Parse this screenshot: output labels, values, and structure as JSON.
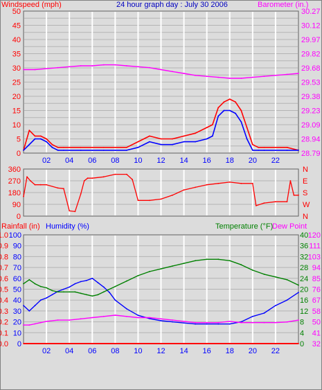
{
  "chart_data": [
    {
      "type": "line",
      "title": "24 hour graph day : July 30 2006",
      "x_ticks": [
        "02",
        "04",
        "06",
        "08",
        "10",
        "12",
        "14",
        "16",
        "18",
        "20",
        "22"
      ],
      "y_left": {
        "label": "Windspeed (mph)",
        "color": "#ff0000",
        "ticks": [
          "0",
          "2.5",
          "5",
          "7.5",
          "10",
          "12.5",
          "15",
          "17.5",
          "20",
          "22.5",
          "25",
          "27.5",
          "30",
          "32.5",
          "35",
          "37.5",
          "40",
          "42.5",
          "45",
          "47.5",
          "50"
        ],
        "ylim": [
          0,
          50
        ]
      },
      "y_right": {
        "label": "Barometer (in.)",
        "color": "#ff00ff",
        "ticks": [
          "28.79",
          "28.94",
          "29.09",
          "29.23",
          "29.38",
          "29.53",
          "29.68",
          "29.82",
          "29.97",
          "30.12",
          "30.27"
        ],
        "ylim": [
          28.79,
          30.27
        ]
      },
      "series": [
        {
          "color": "#ff00ff",
          "x": [
            0,
            1,
            2,
            3,
            4,
            5,
            6,
            7,
            8,
            9,
            10,
            11,
            12,
            13,
            14,
            15,
            16,
            17,
            18,
            19,
            20,
            21,
            22,
            23,
            24
          ],
          "values": [
            29.66,
            29.66,
            29.67,
            29.68,
            29.69,
            29.7,
            29.7,
            29.71,
            29.71,
            29.7,
            29.69,
            29.68,
            29.66,
            29.64,
            29.62,
            29.6,
            29.59,
            29.58,
            29.57,
            29.57,
            29.58,
            29.59,
            29.6,
            29.61,
            29.62
          ]
        },
        {
          "color": "#ff0000",
          "x": [
            0,
            0.5,
            1,
            1.5,
            2,
            2.5,
            3,
            3.5,
            4,
            5,
            6,
            7,
            8,
            9,
            10,
            11,
            12,
            13,
            14,
            15,
            16,
            16.5,
            17,
            17.5,
            18,
            18.5,
            19,
            19.5,
            20,
            20.5,
            21,
            22,
            23,
            24
          ],
          "values": [
            1,
            8,
            6,
            6,
            5,
            3,
            2,
            2,
            2,
            2,
            2,
            2,
            2,
            2,
            4,
            6,
            5,
            5,
            6,
            7,
            9,
            10,
            16,
            18,
            19,
            18,
            15,
            9,
            3,
            2,
            2,
            2,
            2,
            1
          ]
        },
        {
          "color": "#0000ff",
          "x": [
            0,
            0.5,
            1,
            1.5,
            2,
            2.5,
            3,
            3.5,
            4,
            5,
            6,
            7,
            8,
            9,
            10,
            11,
            12,
            13,
            14,
            15,
            16,
            16.5,
            17,
            17.5,
            18,
            18.5,
            19,
            19.5,
            20,
            20.5,
            21,
            22,
            23,
            24
          ],
          "values": [
            1,
            3,
            5,
            5,
            4,
            2,
            1,
            1,
            1,
            1,
            1,
            1,
            1,
            1,
            2,
            4,
            3,
            3,
            4,
            4,
            5,
            6,
            13,
            15,
            15,
            14,
            11,
            5,
            1,
            1,
            1,
            1,
            1,
            1
          ]
        }
      ]
    },
    {
      "type": "line",
      "x_ticks": [
        "02",
        "04",
        "06",
        "08",
        "10",
        "12",
        "14",
        "16",
        "18",
        "20",
        "22"
      ],
      "y_left": {
        "ticks": [
          "0",
          "90",
          "180",
          "270",
          "360"
        ],
        "ylim": [
          0,
          360
        ],
        "color": "#ff0000"
      },
      "y_right": {
        "ticks": [
          "N",
          "W",
          "S",
          "E",
          "N"
        ],
        "color": "#ff0000"
      },
      "series": [
        {
          "color": "#ff0000",
          "x": [
            0,
            0.3,
            0.6,
            1,
            1.5,
            2,
            3,
            3.5,
            4,
            4.5,
            5,
            5.3,
            5.6,
            6,
            7,
            8,
            9,
            9.5,
            10,
            11,
            12,
            13,
            14,
            15,
            16,
            17,
            18,
            19,
            20,
            20.3,
            21,
            22,
            23,
            23.3,
            23.6,
            24
          ],
          "values": [
            150,
            300,
            270,
            240,
            240,
            240,
            215,
            210,
            40,
            35,
            170,
            270,
            290,
            290,
            300,
            320,
            320,
            280,
            120,
            120,
            130,
            160,
            200,
            220,
            240,
            250,
            260,
            250,
            250,
            80,
            100,
            110,
            110,
            270,
            160,
            160
          ]
        }
      ]
    },
    {
      "type": "line",
      "x_ticks": [
        "02",
        "04",
        "06",
        "08",
        "10",
        "12",
        "14",
        "16",
        "18",
        "20",
        "22"
      ],
      "y_left_outer": {
        "label": "Rainfall (in)",
        "color": "#ff0000",
        "ticks": [
          "0.0",
          "0.1",
          "0.2",
          "0.3",
          "0.4",
          "0.5",
          "0.6",
          "0.7",
          "0.8",
          "0.9",
          "1.0"
        ],
        "ylim": [
          0,
          1
        ]
      },
      "y_left_inner": {
        "label": "Humidity (%)",
        "color": "#0000ff",
        "ticks": [
          "0",
          "10",
          "20",
          "30",
          "40",
          "50",
          "60",
          "70",
          "80",
          "90",
          "100"
        ],
        "ylim": [
          0,
          100
        ]
      },
      "y_right_inner": {
        "label": "Temperature (°F)",
        "color": "#008000",
        "ticks": [
          "0",
          "4",
          "8",
          "12",
          "16",
          "20",
          "24",
          "28",
          "32",
          "36",
          "40"
        ],
        "ylim": [
          0,
          40
        ]
      },
      "y_right_outer": {
        "label": "Dew Point",
        "color": "#ff00ff",
        "ticks": [
          "32",
          "41",
          "50",
          "58",
          "67",
          "76",
          "85",
          "94",
          "103",
          "111",
          "120"
        ],
        "ylim": [
          32,
          120
        ]
      },
      "series": [
        {
          "color": "#0000ff",
          "x": [
            0,
            0.5,
            1,
            1.5,
            2,
            2.5,
            3,
            3.5,
            4,
            4.5,
            5,
            5.5,
            6,
            6.5,
            7,
            7.5,
            8,
            9,
            10,
            11,
            12,
            13,
            14,
            15,
            16,
            17,
            18,
            19,
            20,
            21,
            22,
            23,
            24
          ],
          "values": [
            35,
            30,
            35,
            40,
            42,
            45,
            48,
            50,
            52,
            55,
            57,
            58,
            60,
            56,
            52,
            47,
            40,
            32,
            26,
            23,
            21,
            20,
            19,
            18,
            18,
            18,
            18,
            20,
            25,
            28,
            35,
            40,
            47
          ]
        },
        {
          "color": "#008000",
          "x": [
            0,
            0.5,
            1,
            1.5,
            2,
            2.5,
            3,
            3.5,
            4,
            4.5,
            5,
            5.5,
            6,
            6.5,
            7,
            8,
            9,
            10,
            11,
            12,
            13,
            14,
            15,
            16,
            17,
            18,
            19,
            20,
            21,
            22,
            23,
            24
          ],
          "values": [
            22,
            23.5,
            22,
            21,
            20.5,
            19.5,
            19,
            19,
            19,
            19,
            18.5,
            18,
            17.5,
            18,
            19,
            21,
            23,
            25,
            26.5,
            27.5,
            28.5,
            29.5,
            30.5,
            31,
            31,
            30.5,
            29,
            27,
            25.5,
            24.5,
            23.5,
            21.5
          ]
        },
        {
          "color": "#ff00ff",
          "x": [
            0,
            0.5,
            1,
            1.5,
            2,
            3,
            4,
            5,
            6,
            7,
            8,
            9,
            10,
            11,
            12,
            13,
            14,
            15,
            16,
            17,
            18,
            19,
            20,
            21,
            22,
            23,
            24
          ],
          "values": [
            47,
            47,
            48,
            49,
            50,
            51,
            51,
            52,
            53,
            54,
            55,
            54,
            53,
            53,
            52,
            51,
            50,
            49,
            49,
            49,
            50,
            49,
            49,
            49,
            49,
            49.5,
            51
          ]
        },
        {
          "color": "#ff0000",
          "x": [
            0,
            24
          ],
          "values": [
            0,
            0
          ]
        }
      ]
    }
  ]
}
